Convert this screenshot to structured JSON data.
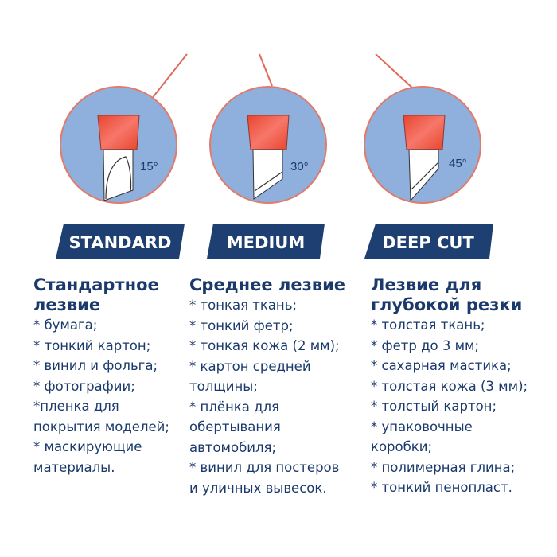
{
  "colors": {
    "navy": "#1b3a6b",
    "circle": "#8fafdc",
    "holder": "#f05a3c",
    "line": "#e06a5a"
  },
  "blades": [
    {
      "angle": "15°",
      "label": "STANDARD"
    },
    {
      "angle": "30°",
      "label": "MEDIUM"
    },
    {
      "angle": "45°",
      "label": "DEEP CUT"
    }
  ],
  "columns": [
    {
      "title": [
        "Стандартное",
        "лезвие"
      ],
      "items": [
        "* бумага;",
        "* тонкий картон;",
        "* винил и фольга;",
        "* фотографии;",
        "*пленка для\nпокрытия моделей;",
        "* маскирующие\nматериалы."
      ]
    },
    {
      "title": [
        "Среднее лезвие"
      ],
      "items": [
        "* тонкая ткань;",
        "* тонкий фетр;",
        "* тонкая кожа (2 мм);",
        "* картон средней\nтолщины;",
        "* плёнка для\nобертывания\nавтомобиля;",
        "* винил для постеров\nи уличных вывесок."
      ]
    },
    {
      "title": [
        "Лезвие для",
        "глубокой резки"
      ],
      "items": [
        "* толстая ткань;",
        "* фетр до 3 мм;",
        "* сахарная мастика;",
        "* толстая кожа (3 мм);",
        "* толстый картон;",
        "* упаковочные\nкоробки;",
        "* полимерная глина;",
        "* тонкий пенопласт."
      ]
    }
  ]
}
